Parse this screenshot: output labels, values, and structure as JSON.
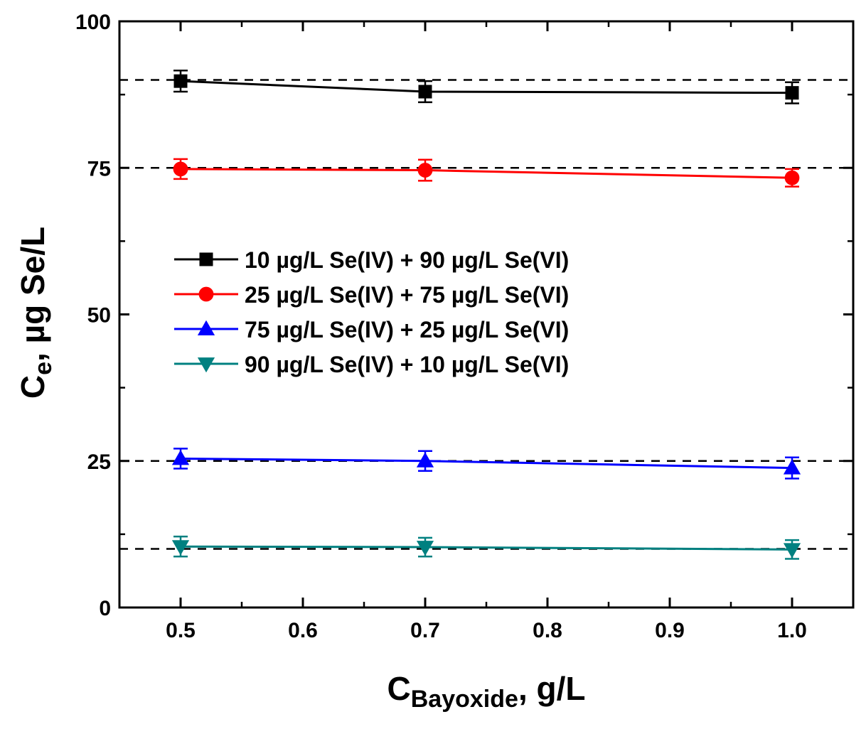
{
  "chart_data": {
    "type": "line",
    "xlabel": {
      "main": "C",
      "sub": "Bayoxide",
      "rest": ", g/L"
    },
    "ylabel": {
      "main": "C",
      "sub": "e",
      "rest": ", µg Se/L"
    },
    "xlim": [
      0.45,
      1.05
    ],
    "ylim": [
      0,
      100
    ],
    "xticks": [
      0.5,
      0.6,
      0.7,
      0.8,
      0.9,
      1.0
    ],
    "xtick_labels": [
      "0.5",
      "0.6",
      "0.7",
      "0.8",
      "0.9",
      "1.0"
    ],
    "xminor": [
      0.55,
      0.65,
      0.75,
      0.85,
      0.95,
      1.05
    ],
    "yticks": [
      0,
      25,
      50,
      75,
      100
    ],
    "ytick_labels": [
      "0",
      "25",
      "50",
      "75",
      "100"
    ],
    "yminor": [
      12.5,
      37.5,
      62.5,
      87.5
    ],
    "reference_lines": [
      90,
      75,
      25,
      10
    ],
    "legend_position": "center-left",
    "series": [
      {
        "name": "10 µg/L Se(IV) + 90 µg/L Se(VI)",
        "color": "#000000",
        "marker": "square",
        "x": [
          0.5,
          0.7,
          1.0
        ],
        "y": [
          89.8,
          88.0,
          87.8
        ],
        "err": [
          1.8,
          1.8,
          1.8
        ]
      },
      {
        "name": "25 µg/L Se(IV) + 75 µg/L Se(VI)",
        "color": "#ff0000",
        "marker": "circle",
        "x": [
          0.5,
          0.7,
          1.0
        ],
        "y": [
          74.8,
          74.6,
          73.3
        ],
        "err": [
          1.7,
          1.8,
          1.5
        ]
      },
      {
        "name": "75 µg/L Se(IV) + 25 µg/L Se(VI)",
        "color": "#0000ff",
        "marker": "triangle-up",
        "x": [
          0.5,
          0.7,
          1.0
        ],
        "y": [
          25.4,
          25.0,
          23.8
        ],
        "err": [
          1.7,
          1.7,
          1.8
        ]
      },
      {
        "name": "90 µg/L Se(IV) + 10 µg/L Se(VI)",
        "color": "#008080",
        "marker": "triangle-down",
        "x": [
          0.5,
          0.7,
          1.0
        ],
        "y": [
          10.4,
          10.3,
          9.9
        ],
        "err": [
          1.7,
          1.6,
          1.6
        ]
      }
    ]
  }
}
